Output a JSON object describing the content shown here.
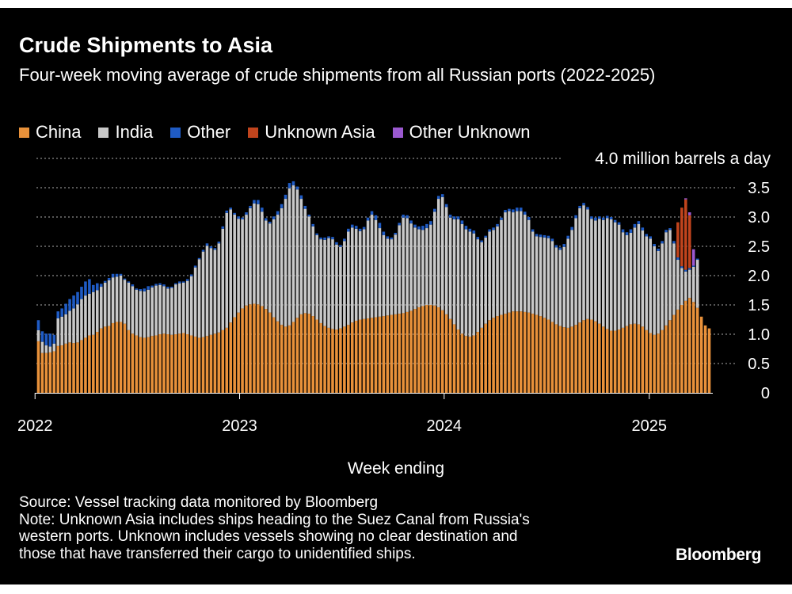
{
  "title": "Crude Shipments to Asia",
  "subtitle": "Four-week moving average of crude shipments from all Russian ports (2022-2025)",
  "legend": [
    {
      "label": "China",
      "color": "#e8913a"
    },
    {
      "label": "India",
      "color": "#c8c8c8"
    },
    {
      "label": "Other",
      "color": "#1f5bc4"
    },
    {
      "label": "Unknown Asia",
      "color": "#c0441d"
    },
    {
      "label": "Other Unknown",
      "color": "#9b59d0"
    }
  ],
  "footer": {
    "source": "Source: Vessel tracking data monitored by Bloomberg",
    "note_lines": [
      "Note: Unknown Asia includes ships heading to the Suez Canal from Russia's",
      "western ports. Unknown includes vessels showing no clear destination and",
      "those that have transferred their cargo to unidentified ships."
    ]
  },
  "brand": "Bloomberg",
  "chart_data": {
    "type": "bar",
    "stacked": true,
    "title": "Crude Shipments to Asia",
    "xlabel": "Week ending",
    "ylabel": "",
    "unit_label": "4.0 million barrels a day",
    "ylim": [
      0,
      4.0
    ],
    "yticks": [
      "0",
      "0.5",
      "1.0",
      "1.5",
      "2.0",
      "2.5",
      "3.0",
      "3.5"
    ],
    "xticks": [
      "2022",
      "2023",
      "2024",
      "2025"
    ],
    "grid": true,
    "legend_position": "top",
    "x_start": "2022-01-07",
    "x_step_days": 7,
    "series": [
      {
        "name": "China",
        "color": "#e8913a",
        "values": [
          0.88,
          0.68,
          0.68,
          0.69,
          0.71,
          0.8,
          0.81,
          0.84,
          0.86,
          0.85,
          0.86,
          0.9,
          0.94,
          0.98,
          0.99,
          1.04,
          1.1,
          1.13,
          1.14,
          1.19,
          1.21,
          1.21,
          1.18,
          1.07,
          1.01,
          0.98,
          0.95,
          0.94,
          0.95,
          0.97,
          0.98,
          1.0,
          1.01,
          1.0,
          0.99,
          1.0,
          1.01,
          1.02,
          1.0,
          0.98,
          0.96,
          0.94,
          0.95,
          0.97,
          0.99,
          1.01,
          1.03,
          1.07,
          1.11,
          1.2,
          1.29,
          1.37,
          1.44,
          1.49,
          1.51,
          1.52,
          1.51,
          1.48,
          1.43,
          1.37,
          1.29,
          1.22,
          1.16,
          1.13,
          1.15,
          1.21,
          1.28,
          1.34,
          1.36,
          1.35,
          1.31,
          1.25,
          1.19,
          1.14,
          1.11,
          1.09,
          1.08,
          1.1,
          1.13,
          1.16,
          1.2,
          1.23,
          1.25,
          1.26,
          1.27,
          1.28,
          1.29,
          1.3,
          1.31,
          1.32,
          1.33,
          1.34,
          1.35,
          1.36,
          1.38,
          1.4,
          1.43,
          1.46,
          1.48,
          1.5,
          1.5,
          1.49,
          1.46,
          1.41,
          1.34,
          1.26,
          1.17,
          1.08,
          1.01,
          0.97,
          0.96,
          0.98,
          1.04,
          1.11,
          1.18,
          1.24,
          1.28,
          1.31,
          1.33,
          1.35,
          1.37,
          1.39,
          1.39,
          1.39,
          1.38,
          1.37,
          1.35,
          1.33,
          1.31,
          1.28,
          1.25,
          1.21,
          1.17,
          1.14,
          1.12,
          1.11,
          1.13,
          1.16,
          1.2,
          1.24,
          1.26,
          1.25,
          1.22,
          1.18,
          1.13,
          1.09,
          1.06,
          1.06,
          1.08,
          1.11,
          1.14,
          1.17,
          1.18,
          1.17,
          1.13,
          1.07,
          1.02,
          0.99,
          1.01,
          1.07,
          1.15,
          1.24,
          1.33,
          1.42,
          1.5,
          1.57,
          1.62,
          1.55,
          1.45,
          1.3,
          1.15,
          1.1
        ]
      },
      {
        "name": "India",
        "color": "#c8c8c8",
        "values": [
          0.19,
          0.19,
          0.13,
          0.1,
          0.13,
          0.47,
          0.49,
          0.5,
          0.54,
          0.59,
          0.65,
          0.7,
          0.72,
          0.71,
          0.73,
          0.71,
          0.71,
          0.75,
          0.78,
          0.78,
          0.77,
          0.79,
          0.75,
          0.81,
          0.81,
          0.78,
          0.79,
          0.79,
          0.81,
          0.83,
          0.85,
          0.84,
          0.81,
          0.78,
          0.8,
          0.85,
          0.86,
          0.86,
          0.91,
          1.01,
          1.18,
          1.34,
          1.46,
          1.54,
          1.48,
          1.43,
          1.52,
          1.73,
          1.96,
          1.93,
          1.75,
          1.6,
          1.52,
          1.55,
          1.64,
          1.71,
          1.71,
          1.61,
          1.51,
          1.52,
          1.67,
          1.82,
          1.99,
          2.18,
          2.34,
          2.33,
          2.19,
          1.97,
          1.78,
          1.66,
          1.53,
          1.44,
          1.43,
          1.47,
          1.53,
          1.53,
          1.45,
          1.39,
          1.46,
          1.59,
          1.62,
          1.57,
          1.51,
          1.53,
          1.67,
          1.76,
          1.66,
          1.51,
          1.38,
          1.31,
          1.29,
          1.36,
          1.51,
          1.63,
          1.6,
          1.49,
          1.39,
          1.33,
          1.3,
          1.31,
          1.37,
          1.6,
          1.85,
          1.93,
          1.83,
          1.73,
          1.79,
          1.88,
          1.87,
          1.82,
          1.79,
          1.74,
          1.58,
          1.46,
          1.47,
          1.51,
          1.5,
          1.53,
          1.62,
          1.73,
          1.73,
          1.69,
          1.71,
          1.71,
          1.66,
          1.58,
          1.4,
          1.34,
          1.35,
          1.37,
          1.39,
          1.38,
          1.31,
          1.3,
          1.37,
          1.52,
          1.65,
          1.82,
          1.95,
          1.96,
          1.87,
          1.72,
          1.72,
          1.79,
          1.82,
          1.89,
          1.9,
          1.85,
          1.79,
          1.63,
          1.55,
          1.56,
          1.64,
          1.71,
          1.64,
          1.6,
          1.61,
          1.51,
          1.41,
          1.48,
          1.59,
          1.54,
          1.22,
          0.85,
          0.63,
          0.5,
          0.48,
          0.6,
          0.82
        ]
      },
      {
        "name": "Other",
        "color": "#1f5bc4",
        "values": [
          0.17,
          0.18,
          0.2,
          0.22,
          0.15,
          0.12,
          0.14,
          0.18,
          0.2,
          0.22,
          0.21,
          0.21,
          0.24,
          0.25,
          0.12,
          0.12,
          0.05,
          0.03,
          0.04,
          0.06,
          0.05,
          0.03,
          0.02,
          0.02,
          0.03,
          0.02,
          0.03,
          0.05,
          0.06,
          0.03,
          0.03,
          0.03,
          0.03,
          0.03,
          0.02,
          0.02,
          0.03,
          0.02,
          0.03,
          0.03,
          0.03,
          0.02,
          0.03,
          0.04,
          0.03,
          0.03,
          0.03,
          0.04,
          0.04,
          0.03,
          0.03,
          0.04,
          0.03,
          0.04,
          0.04,
          0.06,
          0.07,
          0.07,
          0.04,
          0.03,
          0.05,
          0.06,
          0.07,
          0.07,
          0.09,
          0.07,
          0.05,
          0.06,
          0.05,
          0.03,
          0.04,
          0.03,
          0.03,
          0.04,
          0.03,
          0.04,
          0.04,
          0.03,
          0.04,
          0.05,
          0.05,
          0.05,
          0.04,
          0.04,
          0.05,
          0.06,
          0.08,
          0.09,
          0.06,
          0.04,
          0.03,
          0.03,
          0.04,
          0.05,
          0.05,
          0.05,
          0.05,
          0.05,
          0.07,
          0.07,
          0.06,
          0.05,
          0.05,
          0.05,
          0.05,
          0.05,
          0.05,
          0.05,
          0.06,
          0.06,
          0.05,
          0.05,
          0.04,
          0.03,
          0.03,
          0.04,
          0.04,
          0.04,
          0.04,
          0.04,
          0.04,
          0.05,
          0.06,
          0.06,
          0.05,
          0.05,
          0.04,
          0.04,
          0.04,
          0.04,
          0.04,
          0.04,
          0.04,
          0.04,
          0.05,
          0.05,
          0.05,
          0.05,
          0.04,
          0.04,
          0.04,
          0.04,
          0.05,
          0.04,
          0.04,
          0.04,
          0.04,
          0.04,
          0.04,
          0.05,
          0.05,
          0.06,
          0.06,
          0.05,
          0.05,
          0.04,
          0.04,
          0.04,
          0.04,
          0.04,
          0.04,
          0.03,
          0.04,
          0.04,
          0.03,
          0.03,
          0.03,
          0.02,
          0.02
        ]
      },
      {
        "name": "Unknown Asia",
        "color": "#c0441d",
        "values": [
          0,
          0,
          0,
          0,
          0,
          0,
          0,
          0,
          0,
          0,
          0,
          0,
          0,
          0,
          0,
          0,
          0,
          0,
          0,
          0,
          0,
          0,
          0,
          0,
          0,
          0,
          0,
          0,
          0,
          0,
          0,
          0,
          0,
          0,
          0,
          0,
          0,
          0,
          0,
          0,
          0,
          0,
          0,
          0,
          0,
          0,
          0,
          0,
          0,
          0,
          0,
          0,
          0,
          0,
          0,
          0,
          0,
          0,
          0,
          0,
          0,
          0,
          0,
          0,
          0,
          0,
          0,
          0,
          0,
          0,
          0,
          0,
          0,
          0,
          0,
          0,
          0,
          0,
          0,
          0,
          0,
          0,
          0,
          0,
          0,
          0,
          0,
          0,
          0,
          0,
          0,
          0,
          0,
          0,
          0,
          0,
          0,
          0,
          0,
          0,
          0,
          0,
          0,
          0,
          0,
          0,
          0,
          0,
          0,
          0,
          0,
          0,
          0,
          0,
          0,
          0,
          0,
          0,
          0,
          0,
          0,
          0,
          0,
          0,
          0,
          0,
          0,
          0,
          0,
          0,
          0,
          0,
          0,
          0,
          0,
          0,
          0,
          0,
          0,
          0,
          0,
          0,
          0,
          0,
          0,
          0,
          0,
          0,
          0,
          0,
          0,
          0,
          0,
          0,
          0,
          0,
          0,
          0,
          0,
          0,
          0,
          0,
          0,
          0.6,
          1.0,
          1.2,
          0.9,
          0.0
        ]
      },
      {
        "name": "Other Unknown",
        "color": "#9b59d0",
        "values": [
          0,
          0,
          0,
          0,
          0,
          0,
          0,
          0,
          0,
          0,
          0,
          0,
          0,
          0,
          0,
          0,
          0,
          0,
          0,
          0,
          0,
          0,
          0,
          0,
          0,
          0,
          0,
          0,
          0,
          0,
          0,
          0,
          0,
          0,
          0,
          0,
          0,
          0,
          0,
          0,
          0,
          0,
          0,
          0,
          0,
          0,
          0,
          0,
          0,
          0,
          0,
          0,
          0,
          0,
          0,
          0,
          0,
          0,
          0,
          0,
          0,
          0,
          0,
          0,
          0,
          0,
          0,
          0,
          0,
          0,
          0,
          0,
          0,
          0,
          0,
          0,
          0,
          0,
          0,
          0,
          0,
          0,
          0,
          0,
          0,
          0,
          0,
          0,
          0,
          0,
          0,
          0,
          0,
          0,
          0,
          0,
          0,
          0,
          0,
          0,
          0,
          0,
          0,
          0,
          0,
          0,
          0,
          0,
          0,
          0,
          0,
          0,
          0,
          0,
          0,
          0,
          0,
          0,
          0,
          0,
          0,
          0,
          0,
          0,
          0,
          0,
          0,
          0,
          0,
          0,
          0,
          0,
          0,
          0,
          0,
          0,
          0,
          0,
          0,
          0,
          0,
          0,
          0,
          0,
          0,
          0,
          0,
          0,
          0,
          0,
          0,
          0,
          0,
          0,
          0,
          0,
          0,
          0,
          0,
          0,
          0,
          0,
          0,
          0,
          0,
          0.02,
          0.05,
          0.28,
          0.0
        ]
      }
    ]
  }
}
